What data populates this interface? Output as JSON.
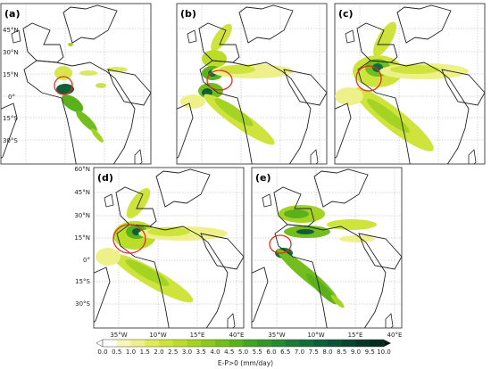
{
  "panels": [
    {
      "id": "a",
      "label": "(a)"
    },
    {
      "id": "b",
      "label": "(b)"
    },
    {
      "id": "c",
      "label": "(c)"
    },
    {
      "id": "d",
      "label": "(d)"
    },
    {
      "id": "e",
      "label": "(e)"
    }
  ],
  "lat_ticks": [
    "60°N",
    "45°N",
    "30°N",
    "15°N",
    "0°",
    "15°S",
    "30°S"
  ],
  "lon_ticks": [
    "35°W",
    "10°W",
    "15°E",
    "40°E"
  ],
  "colorbar": {
    "title": "E-P>0 (mm/day)",
    "labels": [
      "0.0",
      "0.5",
      "1.0",
      "1.5",
      "2.0",
      "2.5",
      "3.0",
      "3.5",
      "4.0",
      "4.5",
      "5.0",
      "5.5",
      "6.0",
      "6.5",
      "7.0",
      "7.5",
      "8.0",
      "8.5",
      "9.0",
      "9.5",
      "10.0"
    ],
    "colors": [
      "#ffffff",
      "#f7f7b8",
      "#eef08a",
      "#e0eb5c",
      "#cfe33d",
      "#bcdc2a",
      "#a5d324",
      "#8cc820",
      "#74bd1e",
      "#5bb11c",
      "#44a322",
      "#35952a",
      "#278832",
      "#1c7a38",
      "#156c3a",
      "#105e39",
      "#0d5136",
      "#0a4430",
      "#083728",
      "#052a1f"
    ]
  }
}
